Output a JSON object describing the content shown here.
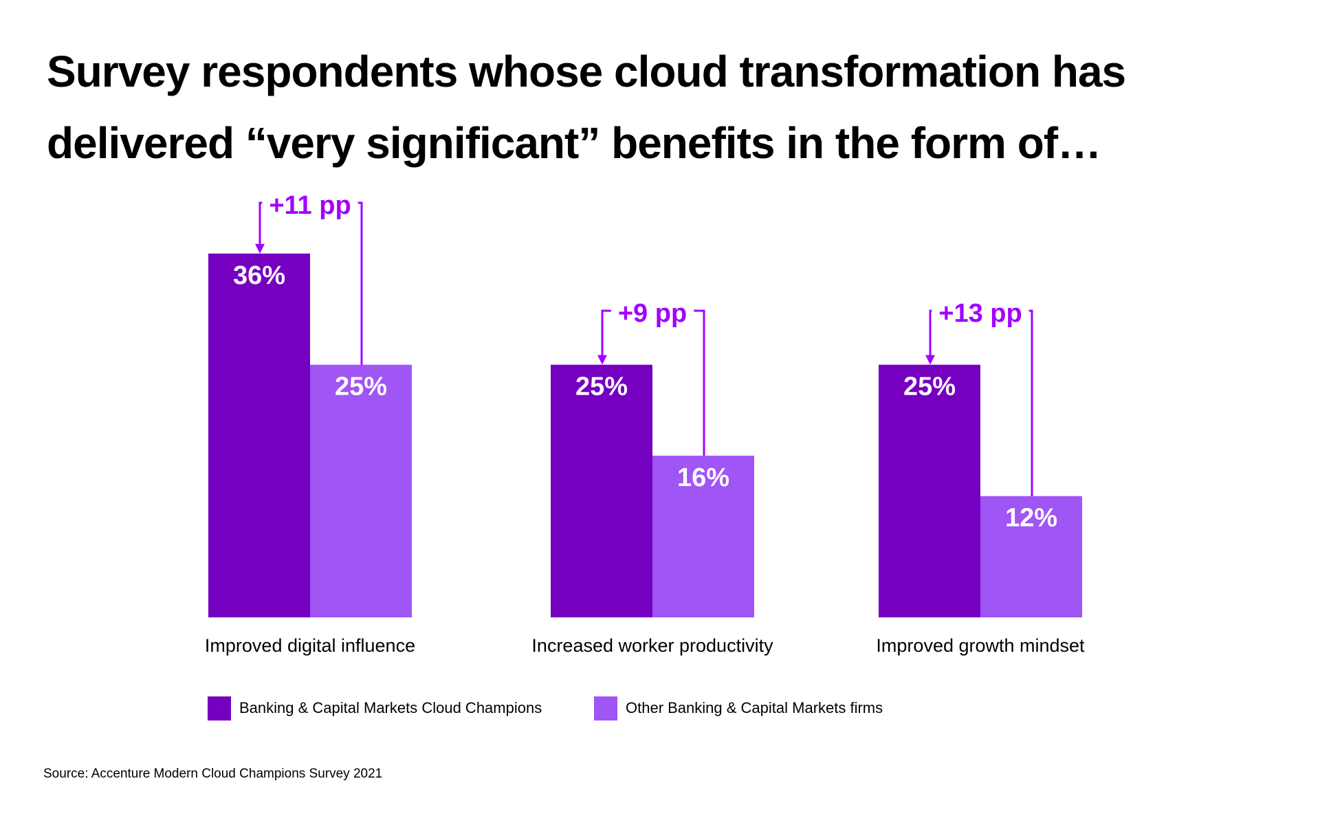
{
  "title": "Survey respondents whose cloud transformation has delivered “very significant” benefits in the form of…",
  "colors": {
    "champions": "#7500C0",
    "others": "#A055F5",
    "delta": "#A100FF"
  },
  "chart_data": {
    "type": "bar",
    "title": "Survey respondents whose cloud transformation has delivered “very significant” benefits in the form of…",
    "xlabel": "",
    "ylabel": "",
    "ylim": [
      0,
      36
    ],
    "grid": false,
    "legend_position": "bottom-left",
    "categories": [
      "Improved digital influence",
      "Increased worker productivity",
      "Improved growth mindset"
    ],
    "series": [
      {
        "name": "Banking & Capital Markets Cloud Champions",
        "values": [
          36,
          25,
          25
        ],
        "labels": [
          "36%",
          "25%",
          "25%"
        ]
      },
      {
        "name": "Other Banking & Capital Markets firms",
        "values": [
          25,
          16,
          12
        ],
        "labels": [
          "25%",
          "16%",
          "12%"
        ]
      }
    ],
    "annotations": [
      "+11 pp",
      "+9 pp",
      "+13 pp"
    ]
  },
  "legend": [
    {
      "label": "Banking & Capital Markets Cloud Champions"
    },
    {
      "label": "Other Banking & Capital Markets firms"
    }
  ],
  "source": "Source: Accenture Modern Cloud Champions Survey 2021"
}
